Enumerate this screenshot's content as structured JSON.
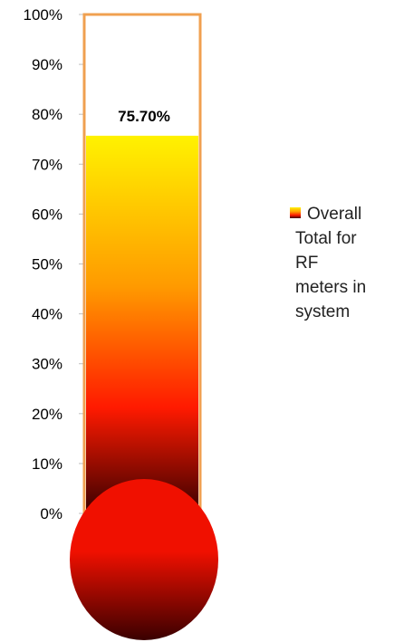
{
  "chart_data": {
    "type": "bar",
    "subtype": "thermometer",
    "categories": [
      ""
    ],
    "series": [
      {
        "name": "Overall Total for RF meters in system",
        "values": [
          0.757
        ]
      }
    ],
    "data_label": "75.70%",
    "ylim": [
      0,
      1
    ],
    "yticks": [
      0,
      0.1,
      0.2,
      0.3,
      0.4,
      0.5,
      0.6,
      0.7,
      0.8,
      0.9,
      1.0
    ],
    "ytick_labels": [
      "0%",
      "10%",
      "20%",
      "30%",
      "40%",
      "50%",
      "60%",
      "70%",
      "80%",
      "90%",
      "100%"
    ],
    "legend_position": "right",
    "legend_lines": [
      "Overall",
      "Total for",
      "RF",
      "meters in",
      "system"
    ],
    "grid": false,
    "colors": {
      "tube_border": "#F0A050",
      "fill_top": "#FFF200",
      "fill_upper_mid": "#FF9A00",
      "fill_mid": "#FF1A00",
      "fill_bottom": "#3A0000",
      "bulb_light": "#F01000",
      "bulb_dark": "#3A0000"
    }
  }
}
